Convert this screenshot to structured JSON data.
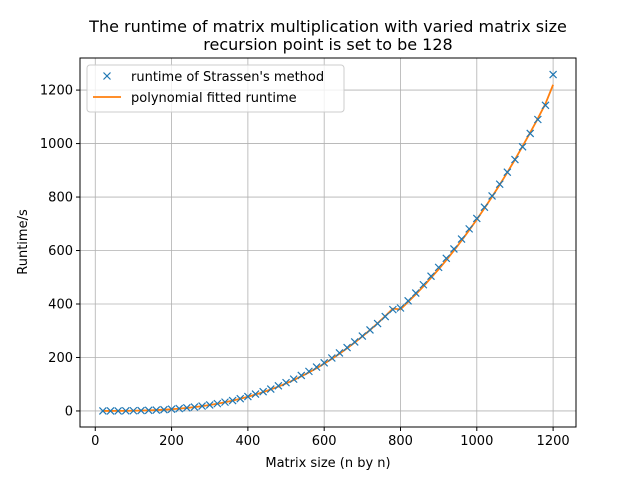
{
  "chart_data": {
    "type": "scatter",
    "title": "The runtime of matrix multiplication with varied matrix size",
    "subtitle": "recursion point is set to be 128",
    "xlabel": "Matrix size (n by n)",
    "ylabel": "Runtime/s",
    "xlim": [
      -40,
      1260
    ],
    "ylim": [
      -60,
      1320
    ],
    "xticks": [
      0,
      200,
      400,
      600,
      800,
      1000,
      1200
    ],
    "yticks": [
      0,
      200,
      400,
      600,
      800,
      1000,
      1200
    ],
    "grid": true,
    "legend_position": "top-left",
    "series": [
      {
        "name": "runtime of Strassen's method",
        "kind": "markers",
        "marker": "x",
        "color": "#1f77b4",
        "x": [
          20,
          40,
          60,
          80,
          100,
          120,
          140,
          160,
          180,
          200,
          220,
          240,
          260,
          280,
          300,
          320,
          340,
          360,
          380,
          400,
          420,
          440,
          460,
          480,
          500,
          520,
          540,
          560,
          580,
          600,
          620,
          640,
          660,
          680,
          700,
          720,
          740,
          760,
          780,
          800,
          820,
          840,
          860,
          880,
          900,
          920,
          940,
          960,
          980,
          1000,
          1020,
          1040,
          1060,
          1080,
          1100,
          1120,
          1140,
          1160,
          1180,
          1200
        ],
        "y": [
          0.01,
          0.05,
          0.2,
          0.4,
          0.8,
          1.5,
          2.3,
          3.4,
          4.9,
          6.7,
          8.9,
          11.6,
          14.7,
          18.4,
          22.6,
          27.4,
          33,
          39,
          46,
          54,
          63,
          72,
          82,
          94,
          106,
          119,
          133,
          148,
          164,
          180,
          198,
          217,
          237,
          258,
          280,
          303,
          327,
          353,
          379,
          385,
          412,
          441,
          472,
          504,
          537,
          571,
          606,
          643,
          681,
          720,
          762,
          804,
          848,
          893,
          940,
          988,
          1038,
          1090,
          1143,
          1258
        ]
      },
      {
        "name": "polynomial fitted runtime",
        "kind": "line",
        "color": "#ff7f0e",
        "x": [
          20,
          40,
          60,
          80,
          100,
          120,
          140,
          160,
          180,
          200,
          220,
          240,
          260,
          280,
          300,
          320,
          340,
          360,
          380,
          400,
          420,
          440,
          460,
          480,
          500,
          520,
          540,
          560,
          580,
          600,
          620,
          640,
          660,
          680,
          700,
          720,
          740,
          760,
          780,
          800,
          820,
          840,
          860,
          880,
          900,
          920,
          940,
          960,
          980,
          1000,
          1020,
          1040,
          1060,
          1080,
          1100,
          1120,
          1140,
          1160,
          1180,
          1200
        ],
        "y": [
          0.0,
          0.05,
          0.2,
          0.4,
          0.8,
          1.4,
          2.2,
          3.3,
          4.7,
          6.5,
          8.7,
          11.3,
          14.4,
          18.1,
          22.3,
          27.1,
          32.6,
          38.7,
          45.5,
          53,
          61.3,
          70.4,
          80.4,
          91.2,
          103,
          115.7,
          129.5,
          144.2,
          160,
          176.9,
          194.9,
          214,
          234.4,
          255.9,
          278.7,
          302.7,
          328,
          354.7,
          382.7,
          380,
          408,
          436,
          466,
          498,
          530,
          564,
          600,
          637,
          676,
          716,
          758,
          801,
          846,
          892,
          940,
          990,
          1041,
          1094,
          1149,
          1220
        ]
      }
    ]
  }
}
